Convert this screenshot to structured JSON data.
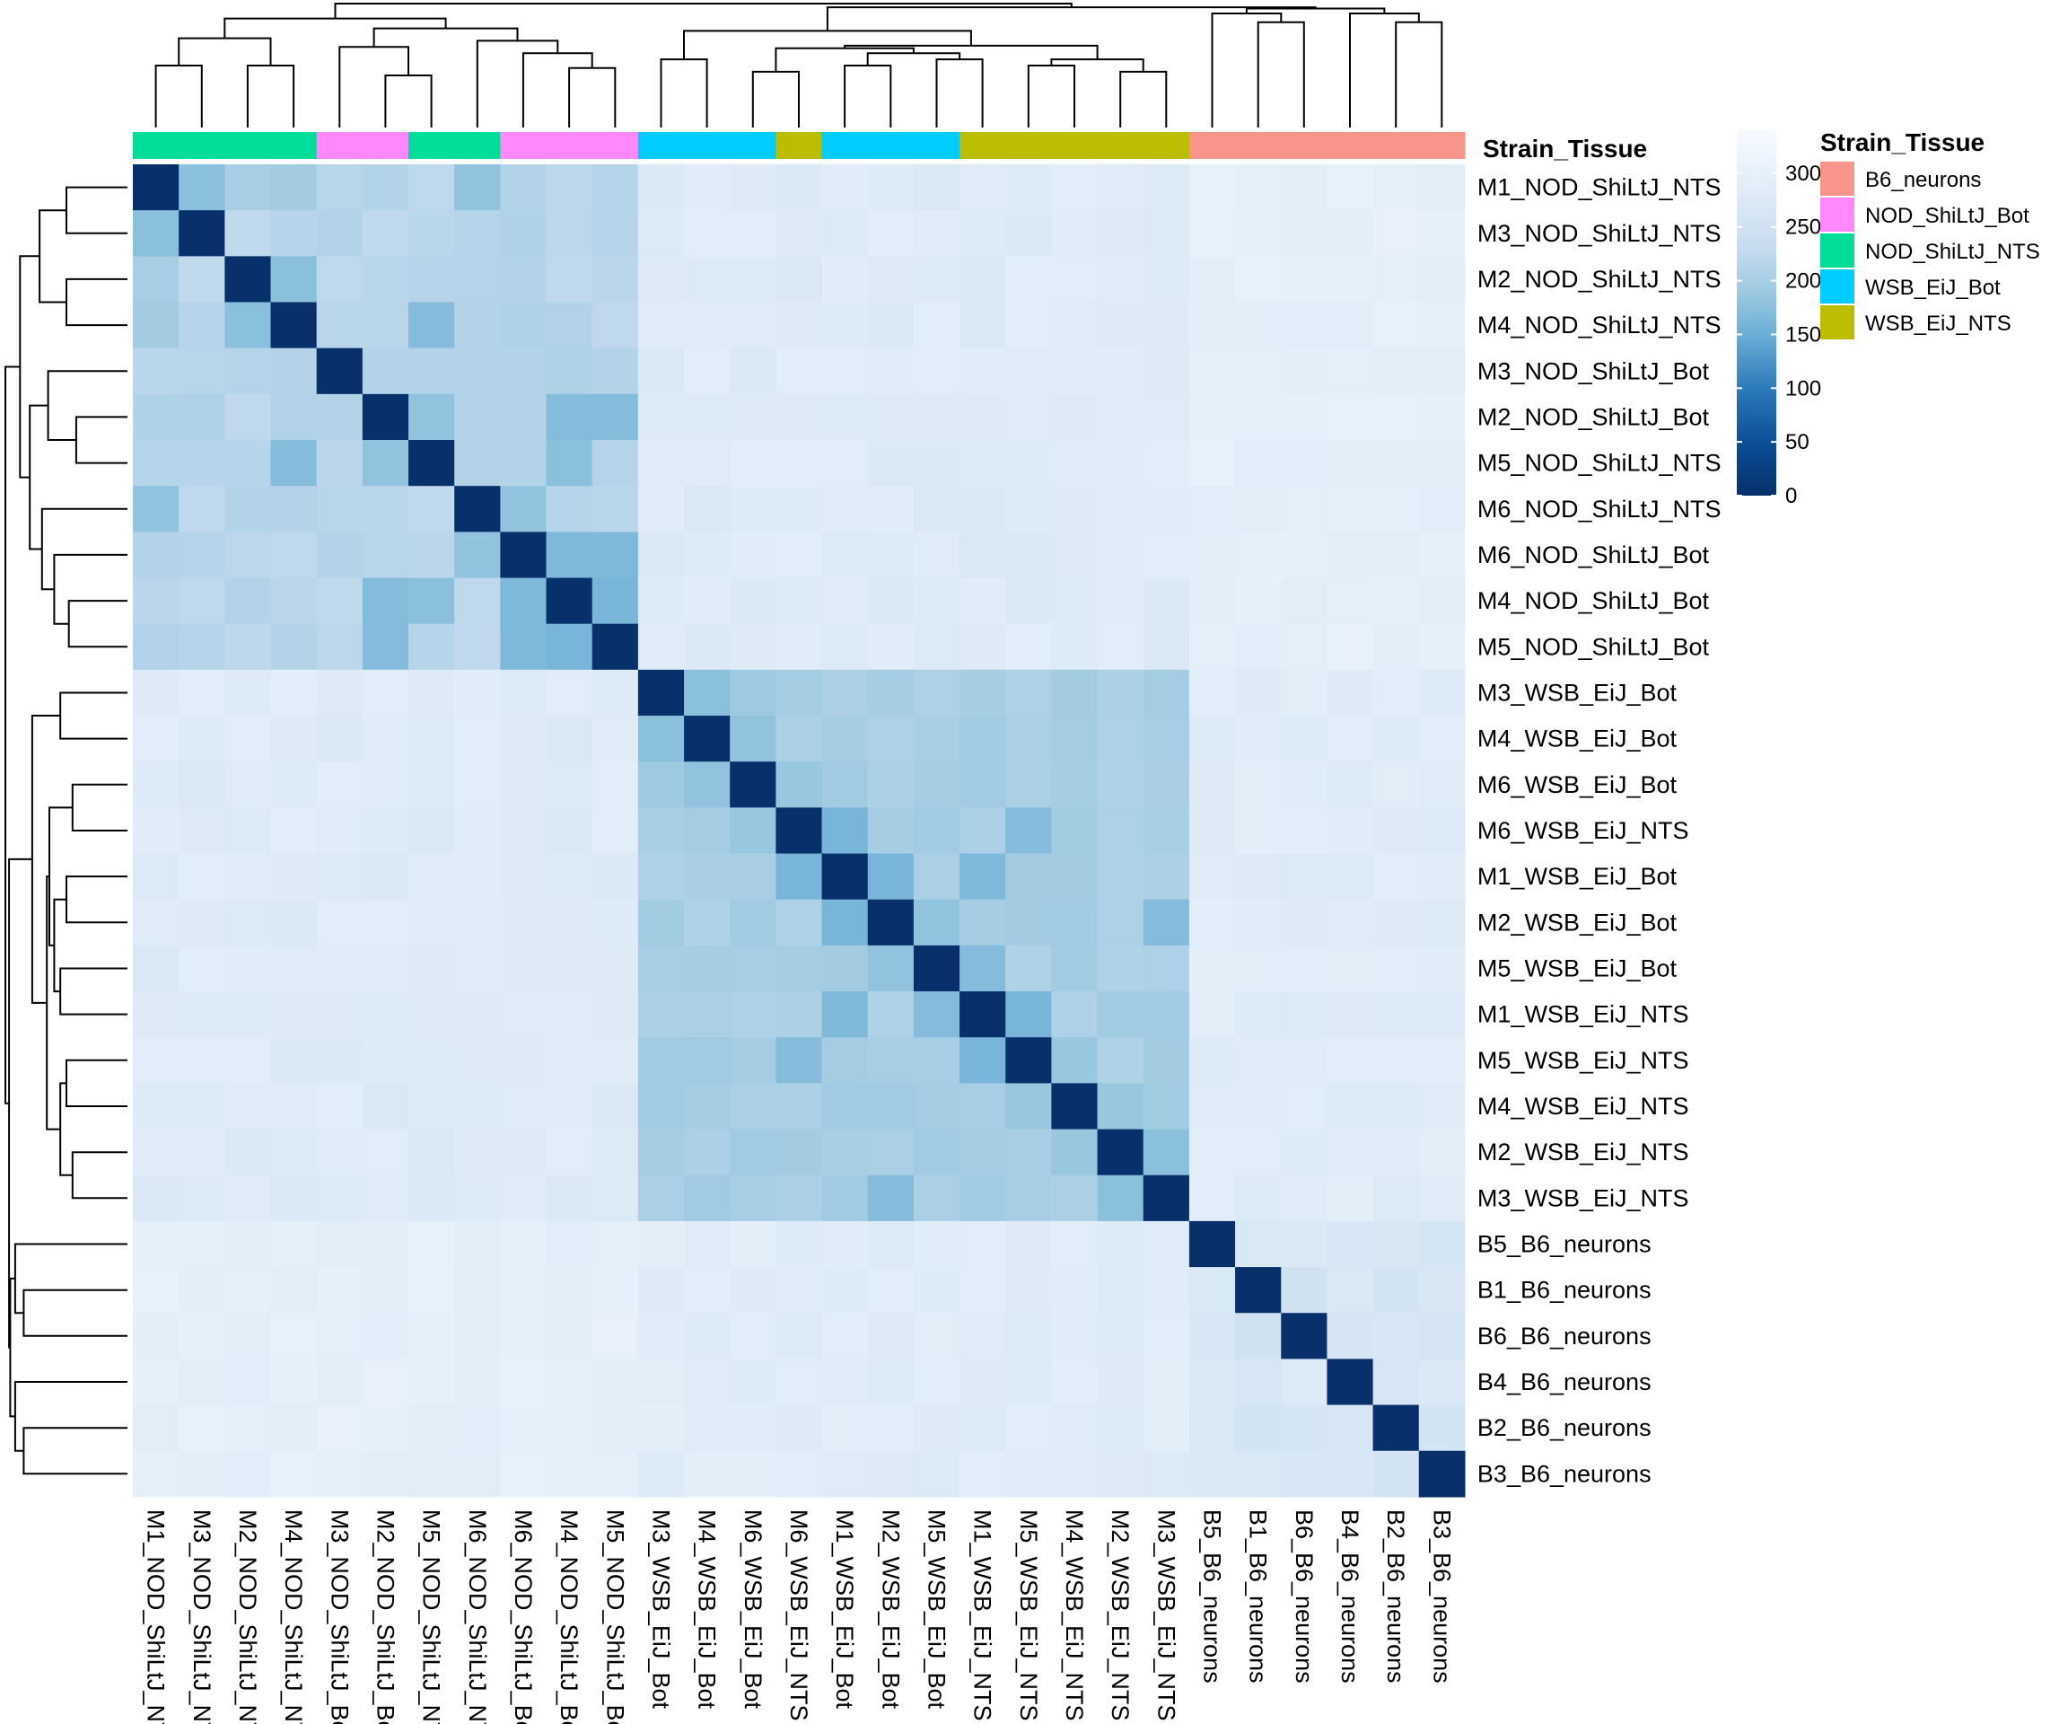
{
  "chart_data": {
    "type": "heatmap",
    "title": "",
    "annotation_title": "Strain_Tissue",
    "labels": [
      "M1_NOD_ShiLtJ_NTS",
      "M3_NOD_ShiLtJ_NTS",
      "M2_NOD_ShiLtJ_NTS",
      "M4_NOD_ShiLtJ_NTS",
      "M3_NOD_ShiLtJ_Bot",
      "M2_NOD_ShiLtJ_Bot",
      "M5_NOD_ShiLtJ_NTS",
      "M6_NOD_ShiLtJ_NTS",
      "M6_NOD_ShiLtJ_Bot",
      "M4_NOD_ShiLtJ_Bot",
      "M5_NOD_ShiLtJ_Bot",
      "M3_WSB_EiJ_Bot",
      "M4_WSB_EiJ_Bot",
      "M6_WSB_EiJ_Bot",
      "M6_WSB_EiJ_NTS",
      "M1_WSB_EiJ_Bot",
      "M2_WSB_EiJ_Bot",
      "M5_WSB_EiJ_Bot",
      "M1_WSB_EiJ_NTS",
      "M5_WSB_EiJ_NTS",
      "M4_WSB_EiJ_NTS",
      "M2_WSB_EiJ_NTS",
      "M3_WSB_EiJ_NTS",
      "B5_B6_neurons",
      "B1_B6_neurons",
      "B6_B6_neurons",
      "B4_B6_neurons",
      "B2_B6_neurons",
      "B3_B6_neurons"
    ],
    "groups": [
      "NOD_ShiLtJ_NTS",
      "NOD_ShiLtJ_NTS",
      "NOD_ShiLtJ_NTS",
      "NOD_ShiLtJ_NTS",
      "NOD_ShiLtJ_Bot",
      "NOD_ShiLtJ_Bot",
      "NOD_ShiLtJ_NTS",
      "NOD_ShiLtJ_NTS",
      "NOD_ShiLtJ_Bot",
      "NOD_ShiLtJ_Bot",
      "NOD_ShiLtJ_Bot",
      "WSB_EiJ_Bot",
      "WSB_EiJ_Bot",
      "WSB_EiJ_Bot",
      "WSB_EiJ_NTS",
      "WSB_EiJ_Bot",
      "WSB_EiJ_Bot",
      "WSB_EiJ_Bot",
      "WSB_EiJ_NTS",
      "WSB_EiJ_NTS",
      "WSB_EiJ_NTS",
      "WSB_EiJ_NTS",
      "WSB_EiJ_NTS",
      "B6_neurons",
      "B6_neurons",
      "B6_neurons",
      "B6_neurons",
      "B6_neurons",
      "B6_neurons"
    ],
    "legend": [
      {
        "name": "B6_neurons",
        "color": "#F8958A"
      },
      {
        "name": "NOD_ShiLtJ_Bot",
        "color": "#FF87FF"
      },
      {
        "name": "NOD_ShiLtJ_NTS",
        "color": "#00DD99"
      },
      {
        "name": "WSB_EiJ_Bot",
        "color": "#00CCFF"
      },
      {
        "name": "WSB_EiJ_NTS",
        "color": "#BDBD00"
      }
    ],
    "color_scale": {
      "min": 0,
      "max": 340,
      "ticks": [
        0,
        50,
        100,
        150,
        200,
        250,
        300
      ],
      "stops": [
        {
          "v": 0,
          "color": "#08306B"
        },
        {
          "v": 50,
          "color": "#0B4F97"
        },
        {
          "v": 100,
          "color": "#2C7BBA"
        },
        {
          "v": 150,
          "color": "#6BAED6"
        },
        {
          "v": 190,
          "color": "#9ECAE1"
        },
        {
          "v": 230,
          "color": "#C6DBEF"
        },
        {
          "v": 280,
          "color": "#DEEBF7"
        },
        {
          "v": 340,
          "color": "#F7FBFF"
        }
      ]
    },
    "group_base": {
      "NOD_NOD": 215,
      "NOD_WSB": 280,
      "NOD_B6": 295,
      "WSB_WSB": 200,
      "WSB_B6": 283,
      "B6_B6": 268
    },
    "pairs": [
      {
        "a": 0,
        "b": 1,
        "v": 175
      },
      {
        "a": 2,
        "b": 3,
        "v": 175
      },
      {
        "a": 0,
        "b": 2,
        "v": 200
      },
      {
        "a": 0,
        "b": 3,
        "v": 195
      },
      {
        "a": 1,
        "b": 2,
        "v": 225
      },
      {
        "a": 1,
        "b": 3,
        "v": 215
      },
      {
        "a": 4,
        "b": 5,
        "v": 210
      },
      {
        "a": 5,
        "b": 6,
        "v": 180
      },
      {
        "a": 6,
        "b": 3,
        "v": 170
      },
      {
        "a": 7,
        "b": 0,
        "v": 180
      },
      {
        "a": 8,
        "b": 9,
        "v": 165
      },
      {
        "a": 8,
        "b": 10,
        "v": 165
      },
      {
        "a": 9,
        "b": 10,
        "v": 160
      },
      {
        "a": 5,
        "b": 9,
        "v": 170
      },
      {
        "a": 5,
        "b": 10,
        "v": 170
      },
      {
        "a": 6,
        "b": 9,
        "v": 175
      },
      {
        "a": 7,
        "b": 8,
        "v": 180
      },
      {
        "a": 11,
        "b": 12,
        "v": 175
      },
      {
        "a": 11,
        "b": 13,
        "v": 190
      },
      {
        "a": 12,
        "b": 13,
        "v": 180
      },
      {
        "a": 13,
        "b": 14,
        "v": 185
      },
      {
        "a": 14,
        "b": 15,
        "v": 160
      },
      {
        "a": 15,
        "b": 16,
        "v": 160
      },
      {
        "a": 16,
        "b": 17,
        "v": 180
      },
      {
        "a": 17,
        "b": 18,
        "v": 170
      },
      {
        "a": 18,
        "b": 19,
        "v": 160
      },
      {
        "a": 19,
        "b": 20,
        "v": 185
      },
      {
        "a": 20,
        "b": 21,
        "v": 185
      },
      {
        "a": 21,
        "b": 22,
        "v": 175
      },
      {
        "a": 14,
        "b": 19,
        "v": 170
      },
      {
        "a": 15,
        "b": 18,
        "v": 165
      },
      {
        "a": 16,
        "b": 22,
        "v": 170
      },
      {
        "a": 23,
        "b": 24,
        "v": 270
      },
      {
        "a": 24,
        "b": 25,
        "v": 250
      },
      {
        "a": 26,
        "b": 27,
        "v": 265
      },
      {
        "a": 27,
        "b": 28,
        "v": 255
      },
      {
        "a": 24,
        "b": 27,
        "v": 255
      }
    ]
  }
}
